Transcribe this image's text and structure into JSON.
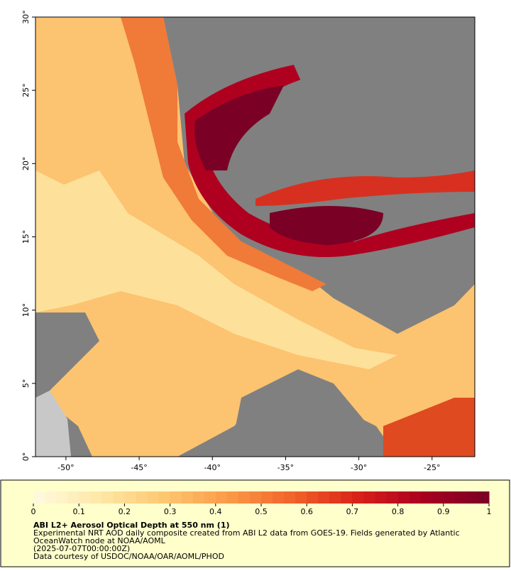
{
  "map": {
    "lon_range": [
      -52.08,
      -22.08
    ],
    "lat_range": [
      0,
      30
    ],
    "lon_ticks": [
      {
        "value": -50,
        "label": "-50°"
      },
      {
        "value": -45,
        "label": "-45°"
      },
      {
        "value": -40,
        "label": "-40°"
      },
      {
        "value": -35,
        "label": "-35°"
      },
      {
        "value": -30,
        "label": "-30°"
      },
      {
        "value": -25,
        "label": "-25°"
      }
    ],
    "lat_ticks": [
      {
        "value": 0,
        "label": "0°"
      },
      {
        "value": 5,
        "label": "5°"
      },
      {
        "value": 10,
        "label": "10°"
      },
      {
        "value": 15,
        "label": "15°"
      },
      {
        "value": 20,
        "label": "20°"
      },
      {
        "value": 25,
        "label": "25°"
      },
      {
        "value": 30,
        "label": "30°"
      }
    ]
  },
  "colorbar": {
    "range": [
      0,
      1
    ],
    "ticks": [
      0,
      0.1,
      0.2,
      0.3,
      0.4,
      0.5,
      0.6,
      0.7,
      0.8,
      0.9,
      1
    ],
    "colormap": [
      "#fffbe0",
      "#fee8a8",
      "#fdc870",
      "#fb9a48",
      "#f06228",
      "#d82018",
      "#a80020",
      "#7a0025"
    ]
  },
  "caption": {
    "title": "ABI L2+ Aerosol Optical Depth at 550 nm (1)",
    "lines": [
      "Experimental NRT AOD daily composite created from ABI L2 data from GOES-19. Fields generated by Atlantic",
      "OceanWatch node at NOAA/AOML",
      "(2025-07-07T00:00:00Z)",
      "Data courtesy of USDOC/NOAA/OAR/AOML/PHOD"
    ]
  }
}
